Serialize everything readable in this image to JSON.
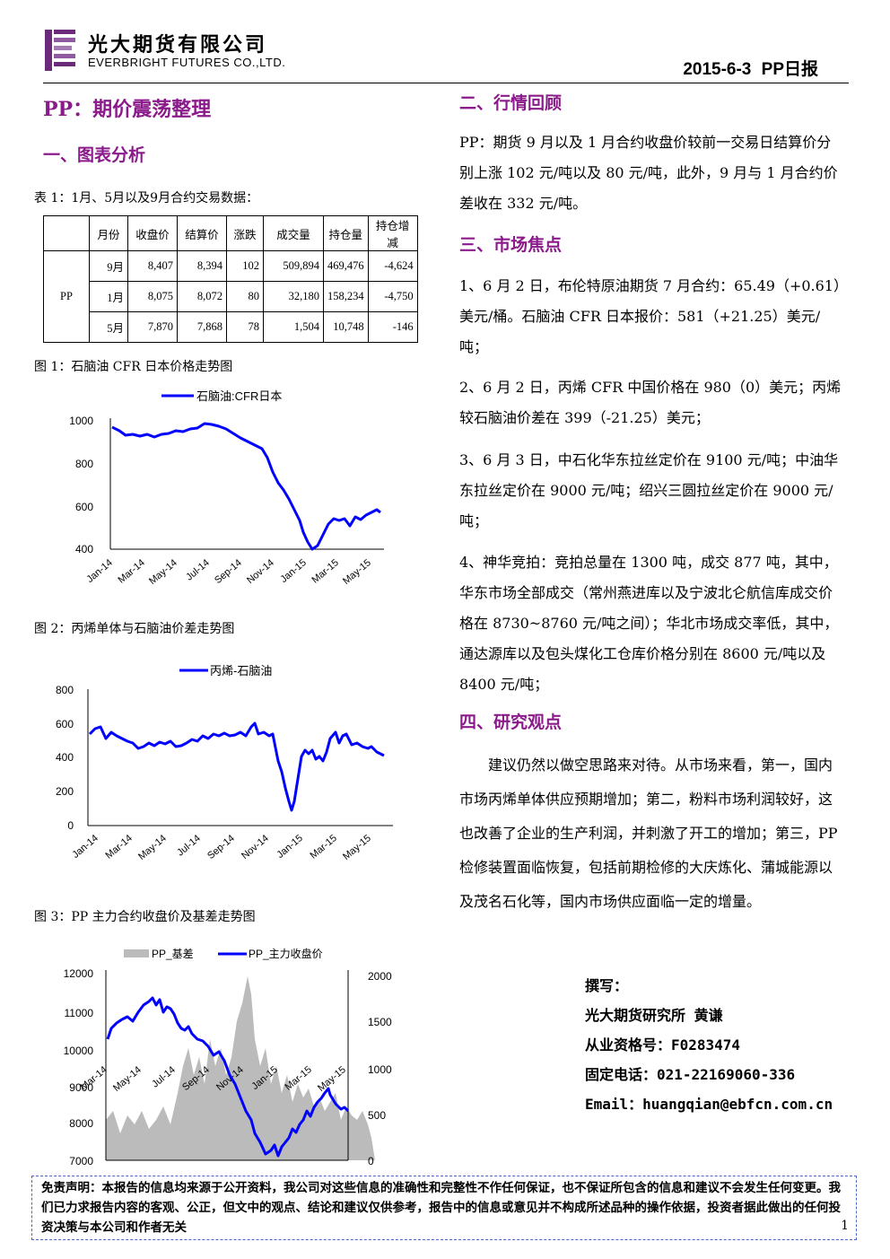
{
  "header": {
    "company_cn": "光大期货有限公司",
    "company_en": "EVERBRIGHT FUTURES CO.,LTD.",
    "date_title": "2015-6-3   PP日报"
  },
  "main_title": "PP：期价震荡整理",
  "sections": {
    "s1": "一、图表分析",
    "s2": "二、行情回顾",
    "s3": "三、市场焦点",
    "s4": "四、研究观点"
  },
  "table1": {
    "caption": "表 1：1月、5月以及9月合约交易数据：",
    "headers": [
      "",
      "月份",
      "收盘价",
      "结算价",
      "涨跌",
      "成交量",
      "持仓量",
      "持仓增减"
    ],
    "product": "PP",
    "rows": [
      [
        "9月",
        "8,407",
        "8,394",
        "102",
        "509,894",
        "469,476",
        "-4,624"
      ],
      [
        "1月",
        "8,075",
        "8,072",
        "80",
        "32,180",
        "158,234",
        "-4,750"
      ],
      [
        "5月",
        "7,870",
        "7,868",
        "78",
        "1,504",
        "10,748",
        "-146"
      ]
    ]
  },
  "fig1": {
    "caption": "图 1：石脑油 CFR 日本价格走势图",
    "legend": "石脑油:CFR日本",
    "color": "#0000FF",
    "yticks": [
      "1000",
      "800",
      "600",
      "400"
    ],
    "xticks": [
      "Jan-14",
      "Mar-14",
      "May-14",
      "Jul-14",
      "Sep-14",
      "Nov-14",
      "Jan-15",
      "Mar-15",
      "May-15"
    ]
  },
  "fig2": {
    "caption": "图 2：丙烯单体与石脑油价差走势图",
    "legend": "丙烯-石脑油",
    "color": "#0000FF",
    "yticks": [
      "800",
      "600",
      "400",
      "200",
      "0"
    ],
    "xticks": [
      "Jan-14",
      "Mar-14",
      "May-14",
      "Jul-14",
      "Sep-14",
      "Nov-14",
      "Jan-15",
      "Mar-15",
      "May-15"
    ]
  },
  "fig3": {
    "caption": "图 3：PP 主力合约收盘价及基差走势图",
    "legend_bar": "PP_基差",
    "legend_line": "PP_主力收盘价",
    "bar_color": "#BBBBBB",
    "line_color": "#0000FF",
    "yticks_left": [
      "12000",
      "11000",
      "10000",
      "9000",
      "8000",
      "7000"
    ],
    "yticks_right": [
      "2000",
      "1500",
      "1000",
      "500",
      "0"
    ],
    "xticks": [
      "Mar-14",
      "May-14",
      "Jul-14",
      "Sep-14",
      "Nov-14",
      "Jan-15",
      "Mar-15",
      "May-15"
    ]
  },
  "review_text": "PP：期货 9 月以及 1 月合约收盘价较前一交易日结算价分别上涨 102 元/吨以及 80 元/吨，此外，9 月与 1 月合约价差收在 332 元/吨。",
  "focus": [
    "1、6 月 2 日，布伦特原油期货 7 月合约：65.49（+0.61）美元/桶。石脑油 CFR 日本报价：581（+21.25）美元/吨；",
    "2、6 月 2 日，丙烯 CFR 中国价格在 980（0）美元；丙烯较石脑油价差在 399（-21.25）美元；",
    "3、6 月 3 日，中石化华东拉丝定价在 9100 元/吨；中油华东拉丝定价在 9000 元/吨；绍兴三圆拉丝定价在 9000 元/吨；",
    "4、神华竞拍：竞拍总量在 1300 吨，成交 877 吨，其中，华东市场全部成交（常州燕进库以及宁波北仑航信库成交价格在 8730~8760 元/吨之间）；华北市场成交率低，其中，通达源库以及包头煤化工仓库价格分别在 8600 元/吨以及 8400 元/吨；"
  ],
  "view_text": "建议仍然以做空思路来对待。从市场来看，第一，国内市场丙烯单体供应预期增加；第二，粉料市场利润较好，这也改善了企业的生产利润，并刺激了开工的增加；第三，PP 检修装置面临恢复，包括前期检修的大庆炼化、蒲城能源以及茂名石化等，国内市场供应面临一定的增量。",
  "signature": {
    "label": "撰写：",
    "author": "光大期货研究所    黄谦",
    "license": "从业资格号：F0283474",
    "phone": "固定电话：021-22169060-336",
    "email": "Email：huangqian@ebfcn.com.cn"
  },
  "disclaimer": "免责声明：本报告的信息均来源于公开资料，我公司对这些信息的准确性和完整性不作任何保证，也不保证所包含的信息和建议不会发生任何变更。我们已力求报告内容的客观、公正，但文中的观点、结论和建议仅供参考，报告中的信息或意见并不构成所述品种的操作依据，投资者据此做出的任何投资决策与本公司和作者无关",
  "page_number": "1",
  "brand_color": "#8B1A8B"
}
